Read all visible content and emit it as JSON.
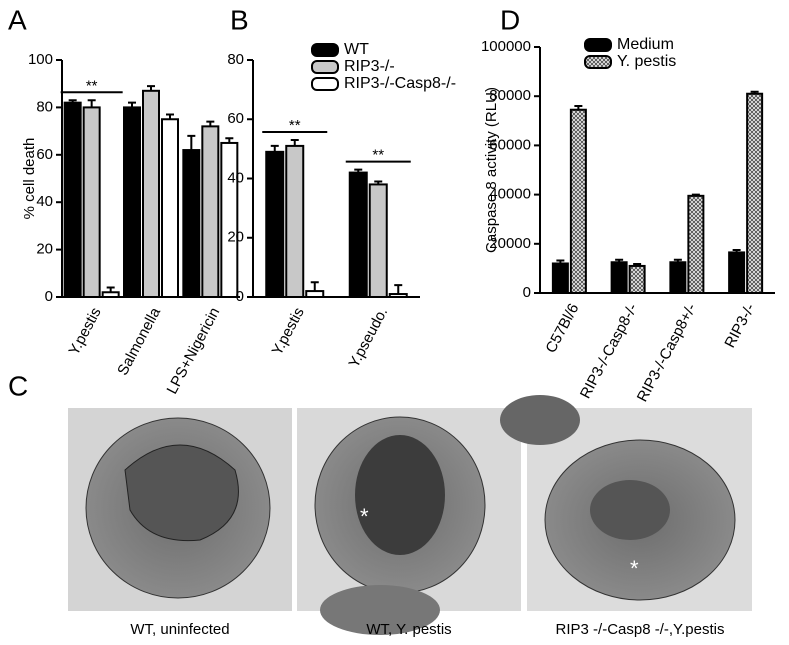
{
  "chart_data": [
    {
      "type": "bar",
      "panel": "A",
      "ylabel": "% cell death",
      "categories": [
        "Y.pestis",
        "Salmonella",
        "LPS+Nigericin"
      ],
      "series": [
        {
          "color": "#000000",
          "values": [
            82,
            80,
            62
          ],
          "errors": [
            1,
            2,
            6
          ]
        },
        {
          "color": "#c8c8c8",
          "values": [
            80,
            87,
            72
          ],
          "errors": [
            3,
            2,
            2
          ]
        },
        {
          "color": "#ffffff",
          "values": [
            2,
            75,
            65
          ],
          "errors": [
            2,
            2,
            2
          ]
        }
      ],
      "annotations": [
        "**"
      ],
      "ylim": [
        0,
        100
      ],
      "yticks": [
        0,
        20,
        40,
        60,
        80,
        100
      ]
    },
    {
      "type": "bar",
      "panel": "B",
      "categories": [
        "Y.pestis",
        "Y.pseudo."
      ],
      "series": [
        {
          "name": "WT",
          "color": "#000000",
          "values": [
            49,
            42
          ],
          "errors": [
            2,
            1
          ]
        },
        {
          "name": "RIP3-/-",
          "color": "#c8c8c8",
          "values": [
            51,
            38
          ],
          "errors": [
            2,
            1
          ]
        },
        {
          "name": "RIP3-/-Casp8-/-",
          "color": "#ffffff",
          "values": [
            2,
            1
          ],
          "errors": [
            3,
            3
          ]
        }
      ],
      "annotations": [
        "**",
        "**"
      ],
      "ylim": [
        0,
        80
      ],
      "yticks": [
        0,
        20,
        40,
        60,
        80
      ]
    },
    {
      "type": "bar",
      "panel": "D",
      "ylabel": "Caspase 8 activity (RLU)",
      "categories": [
        "C57Bl/6",
        "RIP3-/-Casp8-/-",
        "RIP3-/-Casp8+/-",
        "RIP3-/-"
      ],
      "series": [
        {
          "name": "Medium",
          "color": "#000000",
          "values": [
            12000,
            12500,
            12500,
            16500
          ],
          "errors": [
            1200,
            1000,
            1000,
            1000
          ]
        },
        {
          "name": "Y. pestis",
          "color": "#bbbbbb",
          "hatch": true,
          "values": [
            74500,
            11000,
            39500,
            81000
          ],
          "errors": [
            1500,
            800,
            500,
            800
          ]
        }
      ],
      "ylim": [
        0,
        100000
      ],
      "yticks": [
        0,
        20000,
        40000,
        60000,
        80000,
        100000
      ]
    }
  ],
  "micrographs": {
    "panel": "C",
    "captions": [
      "WT, uninfected",
      "WT, Y. pestis",
      "RIP3 -/-Casp8 -/-,Y.pestis"
    ]
  }
}
